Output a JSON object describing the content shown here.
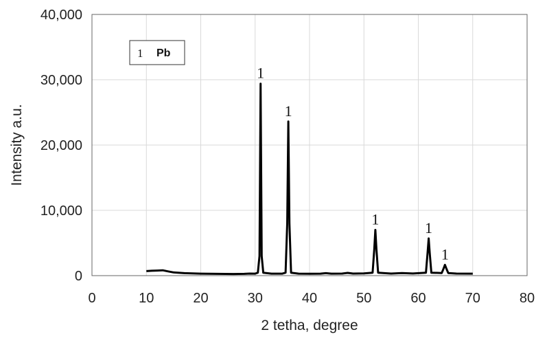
{
  "chart_data": {
    "type": "line",
    "title": "",
    "xlabel": "2 tetha, degree",
    "ylabel": "Intensity a.u.",
    "xlim": [
      0,
      80
    ],
    "ylim": [
      0,
      40000
    ],
    "x_ticks": [
      "0",
      "10",
      "20",
      "30",
      "40",
      "50",
      "60",
      "70",
      "80"
    ],
    "y_ticks": [
      "0",
      "10,000",
      "20,000",
      "30,000",
      "40,000"
    ],
    "grid": true,
    "legend": {
      "placement": "top-left",
      "marker": "1",
      "label": "Pb"
    },
    "line_color": "#000000",
    "series": [
      {
        "values": [
          [
            10,
            700
          ],
          [
            11,
            750
          ],
          [
            12,
            780
          ],
          [
            13,
            820
          ],
          [
            14,
            650
          ],
          [
            15,
            500
          ],
          [
            17,
            380
          ],
          [
            20,
            300
          ],
          [
            23,
            270
          ],
          [
            26,
            250
          ],
          [
            28,
            270
          ],
          [
            29,
            320
          ],
          [
            30,
            300
          ],
          [
            30.5,
            450
          ],
          [
            30.8,
            3000
          ],
          [
            31.0,
            29400
          ],
          [
            31.2,
            3000
          ],
          [
            31.5,
            450
          ],
          [
            33,
            300
          ],
          [
            35,
            300
          ],
          [
            35.6,
            450
          ],
          [
            35.9,
            8000
          ],
          [
            36.1,
            23600
          ],
          [
            36.3,
            8000
          ],
          [
            36.6,
            450
          ],
          [
            38,
            300
          ],
          [
            40,
            280
          ],
          [
            42,
            300
          ],
          [
            43,
            380
          ],
          [
            44,
            300
          ],
          [
            46,
            320
          ],
          [
            47,
            420
          ],
          [
            48,
            320
          ],
          [
            50,
            350
          ],
          [
            51.6,
            450
          ],
          [
            51.9,
            4000
          ],
          [
            52.1,
            7000
          ],
          [
            52.3,
            4000
          ],
          [
            52.6,
            450
          ],
          [
            55,
            320
          ],
          [
            57,
            400
          ],
          [
            59,
            330
          ],
          [
            61.4,
            450
          ],
          [
            61.7,
            3500
          ],
          [
            61.9,
            5700
          ],
          [
            62.1,
            3500
          ],
          [
            62.4,
            450
          ],
          [
            64.3,
            400
          ],
          [
            64.6,
            1000
          ],
          [
            64.9,
            1650
          ],
          [
            65.2,
            1000
          ],
          [
            65.5,
            400
          ],
          [
            67,
            320
          ],
          [
            70,
            300
          ]
        ]
      }
    ],
    "peak_labels": [
      {
        "x": 31.0,
        "y": 29400,
        "text": "1"
      },
      {
        "x": 36.1,
        "y": 23600,
        "text": "1"
      },
      {
        "x": 52.1,
        "y": 7000,
        "text": "1"
      },
      {
        "x": 61.9,
        "y": 5700,
        "text": "1"
      },
      {
        "x": 64.9,
        "y": 1650,
        "text": "1"
      }
    ]
  }
}
